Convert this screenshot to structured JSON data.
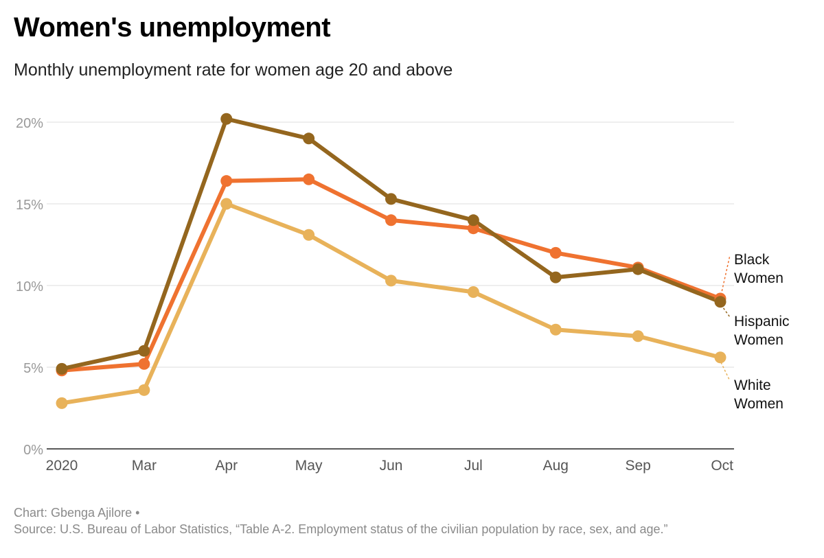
{
  "title": "Women's unemployment",
  "subtitle": "Monthly unemployment rate for women age 20 and above",
  "footer": {
    "credit": "Chart: Gbenga Ajilore •",
    "source": "Source: U.S. Bureau of Labor Statistics, “Table A-2. Employment status of the civilian population by race, sex, and age.”"
  },
  "chart_data": {
    "type": "line",
    "categories": [
      "2020",
      "Mar",
      "Apr",
      "May",
      "Jun",
      "Jul",
      "Aug",
      "Sep",
      "Oct"
    ],
    "ylim": [
      0,
      20
    ],
    "yticks": [
      0,
      5,
      10,
      15,
      20
    ],
    "ytick_labels": [
      "0%",
      "5%",
      "10%",
      "15%",
      "20%"
    ],
    "grid": true,
    "legend": "direct labels at right end of lines",
    "series": [
      {
        "name": "White Women",
        "label_lines": [
          "White",
          "Women"
        ],
        "color": "#e8b25a",
        "values": [
          2.8,
          3.6,
          15.0,
          13.1,
          10.3,
          9.6,
          7.3,
          6.9,
          5.6
        ]
      },
      {
        "name": "Black Women",
        "label_lines": [
          "Black",
          "Women"
        ],
        "color": "#ef7230",
        "values": [
          4.8,
          5.2,
          16.4,
          16.5,
          14.0,
          13.5,
          12.0,
          11.1,
          9.2
        ]
      },
      {
        "name": "Hispanic Women",
        "label_lines": [
          "Hispanic",
          "Women"
        ],
        "color": "#94661e",
        "values": [
          4.9,
          6.0,
          20.2,
          19.0,
          15.3,
          14.0,
          10.5,
          11.0,
          9.0
        ]
      }
    ]
  }
}
